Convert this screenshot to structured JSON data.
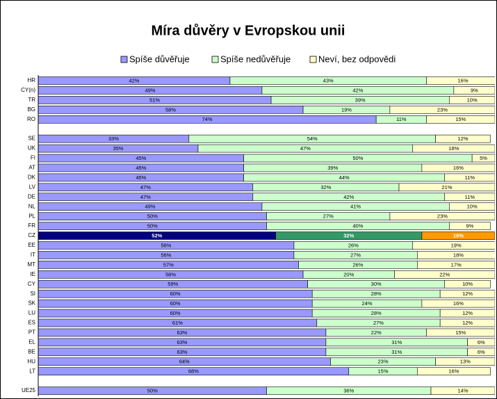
{
  "chart_data": {
    "type": "stacked_barh",
    "title": "Míra důvěry v Evropskou unii",
    "categories": [
      "HR",
      "CY(n)",
      "TR",
      "BG",
      "RO",
      null,
      "SE",
      "UK",
      "FI",
      "AT",
      "DK",
      "LV",
      "DE",
      "NL",
      "PL",
      "FR",
      "CZ",
      "EE",
      "IT",
      "MT",
      "IE",
      "CY",
      "SI",
      "SK",
      "LU",
      "ES",
      "PT",
      "EL",
      "BE",
      "HU",
      "LT",
      null,
      "UE25"
    ],
    "series": [
      {
        "name": "Spíše důvěřuje",
        "color": "#9999ff",
        "highlight_color": "#000080",
        "values": [
          42,
          49,
          51,
          58,
          74,
          null,
          33,
          35,
          45,
          45,
          45,
          47,
          47,
          49,
          50,
          50,
          52,
          56,
          56,
          57,
          58,
          59,
          60,
          60,
          60,
          61,
          63,
          63,
          63,
          64,
          68,
          null,
          50
        ],
        "value_labels": [
          "42%",
          "49%",
          "51%",
          "58%",
          "74%",
          null,
          "33%",
          "35%",
          "45%",
          "45%",
          "45%",
          "47%",
          "47%",
          "49%",
          "50%",
          "50%",
          "52%",
          "56%",
          "56%",
          "57%",
          "58%",
          "59%",
          "60%",
          "60%",
          "60%",
          "61%",
          "63%",
          "63%",
          "63%",
          "64%",
          "68%",
          null,
          "50%"
        ]
      },
      {
        "name": "Spíše nedůvěřuje",
        "color": "#ccffcc",
        "highlight_color": "#339966",
        "values": [
          43,
          42,
          39,
          19,
          11,
          null,
          54,
          47,
          50,
          39,
          44,
          32,
          42,
          41,
          27,
          40,
          32,
          26,
          27,
          26,
          20,
          30,
          28,
          24,
          28,
          27,
          22,
          31,
          31,
          23,
          15,
          null,
          36
        ],
        "value_labels": [
          "43%",
          "42%",
          "39%",
          "19%",
          "11%",
          null,
          "54%",
          "47%",
          "50%",
          "39%",
          "44%",
          "32%",
          "42%",
          "41%",
          "27%",
          "40%",
          "32%",
          "26%",
          "27%",
          "26%",
          "20%",
          "30%",
          "28%",
          "24%",
          "28%",
          "27%",
          "22%",
          "31%",
          "31%",
          "23%",
          "15%",
          null,
          "36%"
        ]
      },
      {
        "name": "Neví, bez odpovědi",
        "color": "#ffffcc",
        "highlight_color": "#ff9900",
        "values": [
          16,
          9,
          10,
          23,
          15,
          null,
          12,
          18,
          5,
          16,
          11,
          21,
          11,
          10,
          23,
          9,
          16,
          19,
          18,
          17,
          22,
          10,
          12,
          16,
          12,
          12,
          15,
          6,
          6,
          13,
          16,
          null,
          14
        ],
        "value_labels": [
          "16%",
          "9%",
          "10%",
          "23%",
          "15%",
          null,
          "12%",
          "18%",
          "5%",
          "16%",
          "11%",
          "21%",
          "11%",
          "10%",
          "23%",
          "9%",
          "16%",
          "19%",
          "18%",
          "17%",
          "22%",
          "10%",
          "12%",
          "16%",
          "12%",
          "12%",
          "15%",
          "6%",
          "6%",
          "13%",
          "16%",
          null,
          "14%"
        ]
      }
    ],
    "highlight_category": "CZ",
    "xlim": [
      0,
      100
    ]
  }
}
